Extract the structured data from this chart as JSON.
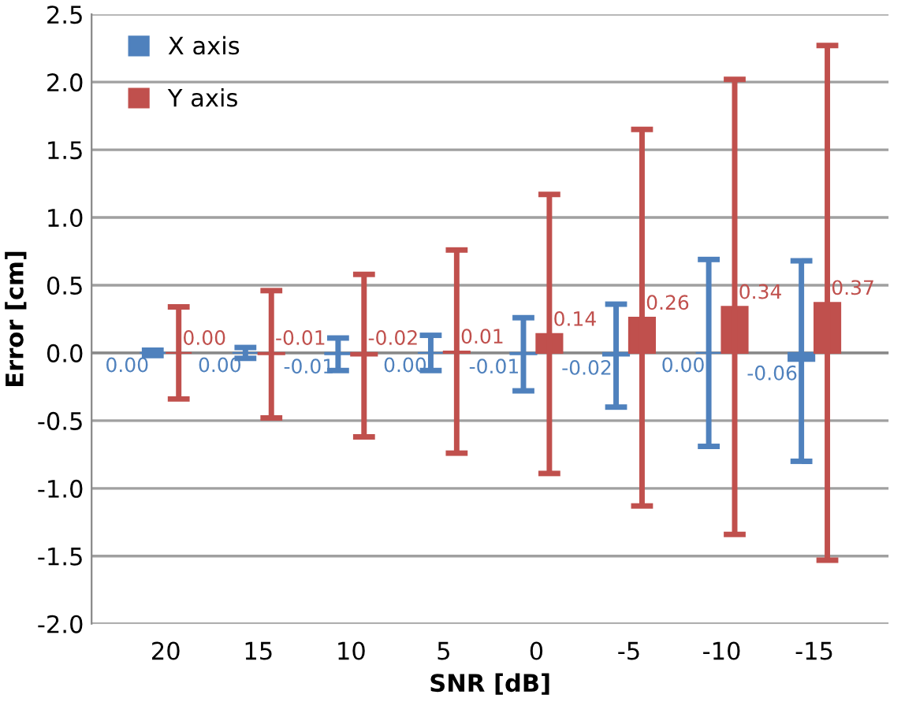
{
  "chart_data": {
    "type": "bar",
    "xlabel": "SNR [dB]",
    "ylabel": "Error [cm]",
    "categories": [
      "20",
      "15",
      "10",
      "5",
      "0",
      "-5",
      "-10",
      "-15"
    ],
    "series": [
      {
        "name": "X axis",
        "color": "#4f81bd",
        "values": [
          0.0,
          0.0,
          -0.01,
          0.0,
          -0.01,
          -0.02,
          0.0,
          -0.06
        ],
        "errors": [
          0.02,
          0.04,
          0.12,
          0.13,
          0.27,
          0.38,
          0.69,
          0.74
        ],
        "value_labels": [
          "0.00",
          "0.00",
          "-0.01",
          "0.00",
          "-0.01",
          "-0.02",
          "0.00",
          "-0.06"
        ]
      },
      {
        "name": "Y axis",
        "color": "#c0504d",
        "values": [
          0.0,
          -0.01,
          -0.02,
          0.01,
          0.14,
          0.26,
          0.34,
          0.37
        ],
        "errors": [
          0.34,
          0.47,
          0.6,
          0.75,
          1.03,
          1.39,
          1.68,
          1.9
        ],
        "value_labels": [
          "0.00",
          "-0.01",
          "-0.02",
          "0.01",
          "0.14",
          "0.26",
          "0.34",
          "0.37"
        ]
      }
    ],
    "ylim": [
      -2.0,
      2.5
    ],
    "yticks": [
      {
        "value": -2.0,
        "label": "-2.0"
      },
      {
        "value": -1.5,
        "label": "-1.5"
      },
      {
        "value": -1.0,
        "label": "-1.0"
      },
      {
        "value": -0.5,
        "label": "-0.5"
      },
      {
        "value": 0.0,
        "label": "0.0"
      },
      {
        "value": 0.5,
        "label": "0.5"
      },
      {
        "value": 1.0,
        "label": "1.0"
      },
      {
        "value": 1.5,
        "label": "1.5"
      },
      {
        "value": 2.0,
        "label": "2.0"
      },
      {
        "value": 2.5,
        "label": "2.5"
      }
    ],
    "grid": "y",
    "legend": "top left"
  }
}
